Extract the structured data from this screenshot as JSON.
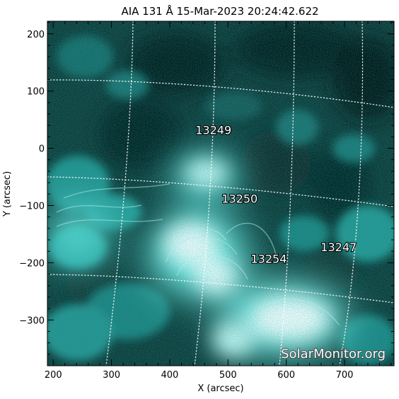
{
  "title": "AIA 131 Å 15-Mar-2023 20:24:42.622",
  "x_axis": {
    "label": "X (arcsec)",
    "ticks": [
      200,
      300,
      400,
      500,
      600,
      700
    ],
    "range": [
      190,
      785
    ]
  },
  "y_axis": {
    "label": "Y (arcsec)",
    "ticks": [
      200,
      100,
      0,
      -100,
      -200,
      -300
    ],
    "range": [
      -380,
      222
    ]
  },
  "regions": [
    {
      "id": "13249",
      "x": 475,
      "y": 25
    },
    {
      "id": "13250",
      "x": 520,
      "y": -95
    },
    {
      "id": "13254",
      "x": 570,
      "y": -200
    },
    {
      "id": "13247",
      "x": 690,
      "y": -180
    }
  ],
  "watermark": "SolarMonitor.org",
  "colors": {
    "background": "#ffffff",
    "image_dark": "#062524",
    "image_mid": "#1e9c98",
    "image_bright": "#ffffff",
    "grid": "#ffffff",
    "axis": "#000000"
  }
}
